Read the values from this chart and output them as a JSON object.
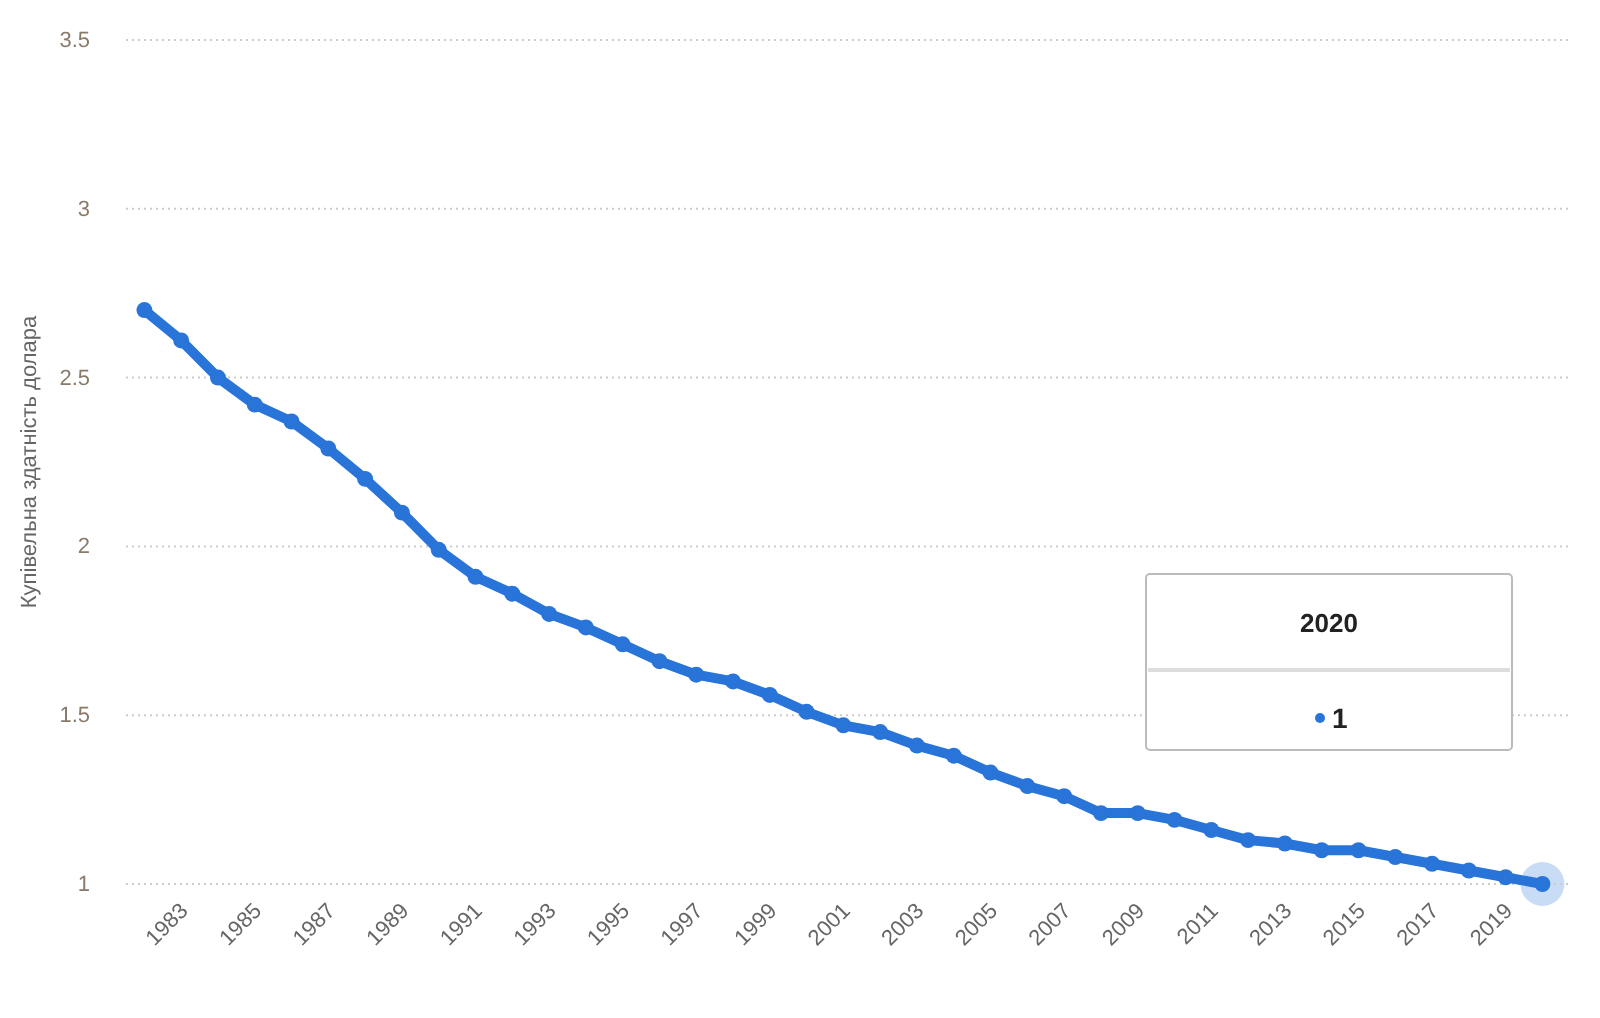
{
  "chart_data": {
    "type": "line",
    "ylabel": "Купівельна здатність долара",
    "x": [
      1982,
      1983,
      1984,
      1985,
      1986,
      1987,
      1988,
      1989,
      1990,
      1991,
      1992,
      1993,
      1994,
      1995,
      1996,
      1997,
      1998,
      1999,
      2000,
      2001,
      2002,
      2003,
      2004,
      2005,
      2006,
      2007,
      2008,
      2009,
      2010,
      2011,
      2012,
      2013,
      2014,
      2015,
      2016,
      2017,
      2018,
      2019,
      2020
    ],
    "series": [
      {
        "color": "#2874d9",
        "values": [
          2.7,
          2.61,
          2.5,
          2.42,
          2.37,
          2.29,
          2.2,
          2.1,
          1.99,
          1.91,
          1.86,
          1.8,
          1.76,
          1.71,
          1.66,
          1.62,
          1.6,
          1.56,
          1.51,
          1.47,
          1.45,
          1.41,
          1.38,
          1.33,
          1.29,
          1.26,
          1.21,
          1.21,
          1.19,
          1.16,
          1.13,
          1.12,
          1.1,
          1.1,
          1.08,
          1.06,
          1.04,
          1.02,
          1
        ]
      }
    ],
    "xlim": [
      1981.5,
      2020.75
    ],
    "xticks": [
      1983,
      1985,
      1987,
      1989,
      1991,
      1993,
      1995,
      1997,
      1999,
      2001,
      2003,
      2005,
      2007,
      2009,
      2011,
      2013,
      2015,
      2017,
      2019
    ],
    "ylim": [
      1,
      3.5
    ],
    "yticks": [
      1,
      {
        "value": 1.5,
        "label": "1.5"
      },
      2,
      {
        "value": 2.5,
        "label": "2.5"
      },
      3,
      {
        "value": 3.5,
        "label": "3.5"
      }
    ],
    "grid": "y",
    "legend": false,
    "marker": "circle",
    "line_style": "solid",
    "annotations": [
      "2020",
      "1"
    ]
  }
}
